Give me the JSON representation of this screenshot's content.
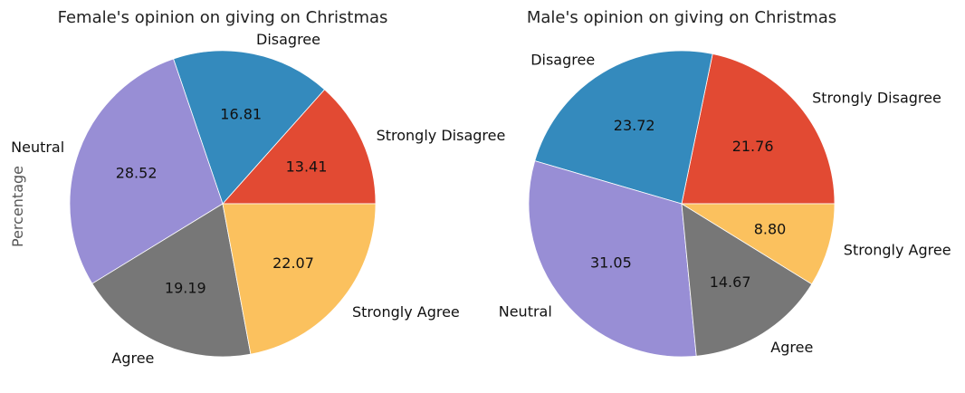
{
  "chart_data": [
    {
      "type": "pie",
      "title": "Female's opinion on giving on Christmas",
      "ylabel": "Percentage",
      "start_angle": 0,
      "direction": "counterclockwise",
      "slices": [
        {
          "label": "Strongly Disagree",
          "value": 13.41,
          "display": "13.41",
          "color": "#E24A33"
        },
        {
          "label": "Disagree",
          "value": 16.81,
          "display": "16.81",
          "color": "#348ABD"
        },
        {
          "label": "Neutral",
          "value": 28.52,
          "display": "28.52",
          "color": "#988ED5"
        },
        {
          "label": "Agree",
          "value": 19.19,
          "display": "19.19",
          "color": "#777777"
        },
        {
          "label": "Strongly Agree",
          "value": 22.07,
          "display": "22.07",
          "color": "#FBC15E"
        }
      ]
    },
    {
      "type": "pie",
      "title": "Male's opinion on giving on Christmas",
      "ylabel": "",
      "start_angle": 0,
      "direction": "counterclockwise",
      "slices": [
        {
          "label": "Strongly Disagree",
          "value": 21.76,
          "display": "21.76",
          "color": "#E24A33"
        },
        {
          "label": "Disagree",
          "value": 23.72,
          "display": "23.72",
          "color": "#348ABD"
        },
        {
          "label": "Neutral",
          "value": 31.05,
          "display": "31.05",
          "color": "#988ED5"
        },
        {
          "label": "Agree",
          "value": 14.67,
          "display": "14.67",
          "color": "#777777"
        },
        {
          "label": "Strongly Agree",
          "value": 8.8,
          "display": "8.80",
          "color": "#FBC15E"
        }
      ]
    }
  ]
}
